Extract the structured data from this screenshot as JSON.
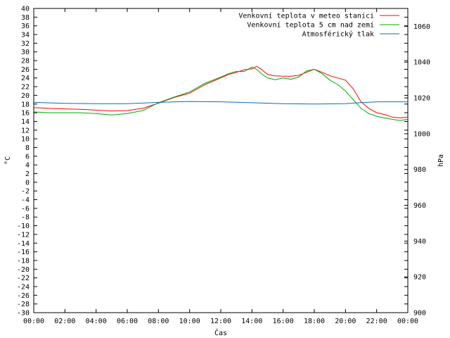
{
  "chart_data": {
    "type": "line",
    "xlabel": "Čas",
    "ylabel_left": "°C",
    "ylabel_right": "hPa",
    "y_left_range": [
      -30,
      40
    ],
    "y_left_ticks": [
      "40",
      "38",
      "36",
      "34",
      "32",
      "30",
      "28",
      "26",
      "24",
      "22",
      "20",
      "18",
      "16",
      "14",
      "12",
      "10",
      "8",
      "6",
      "4",
      "2",
      "0",
      "-2",
      "-4",
      "-6",
      "-8",
      "-10",
      "-12",
      "-14",
      "-16",
      "-18",
      "-20",
      "-22",
      "-24",
      "-26",
      "-28",
      "-30"
    ],
    "y_right_range": [
      900,
      1070
    ],
    "y_right_ticks": [
      "1060",
      "1040",
      "1020",
      "1000",
      "980",
      "960",
      "940",
      "920",
      "900"
    ],
    "x_range_hours": [
      0,
      24
    ],
    "x_ticks": [
      "00:00",
      "02:00",
      "04:00",
      "06:00",
      "08:00",
      "10:00",
      "12:00",
      "14:00",
      "16:00",
      "18:00",
      "20:00",
      "22:00",
      "00:00"
    ],
    "grid": false,
    "legend_position": "top-right",
    "series": [
      {
        "name": "Venkovní teplota v meteo stanici",
        "axis": "left",
        "color": "#ff0000",
        "points": [
          [
            0,
            17.2
          ],
          [
            1,
            17.0
          ],
          [
            2,
            16.9
          ],
          [
            3,
            16.8
          ],
          [
            4,
            16.6
          ],
          [
            5,
            16.4
          ],
          [
            6,
            16.5
          ],
          [
            7,
            17.0
          ],
          [
            8,
            18.2
          ],
          [
            9,
            19.5
          ],
          [
            10,
            20.5
          ],
          [
            11,
            22.5
          ],
          [
            12,
            24.0
          ],
          [
            12.5,
            24.8
          ],
          [
            13,
            25.3
          ],
          [
            13.5,
            25.9
          ],
          [
            14,
            26.1
          ],
          [
            14.3,
            26.7
          ],
          [
            14.6,
            26.0
          ],
          [
            15,
            24.8
          ],
          [
            15.5,
            24.5
          ],
          [
            16,
            24.4
          ],
          [
            16.5,
            24.4
          ],
          [
            17,
            24.6
          ],
          [
            17.5,
            25.3
          ],
          [
            18,
            26.0
          ],
          [
            18.5,
            25.3
          ],
          [
            19,
            24.5
          ],
          [
            19.5,
            24.0
          ],
          [
            20,
            23.5
          ],
          [
            20.5,
            21.5
          ],
          [
            21,
            18.5
          ],
          [
            21.5,
            17.0
          ],
          [
            22,
            16.0
          ],
          [
            22.5,
            15.6
          ],
          [
            23,
            15.0
          ],
          [
            23.5,
            14.8
          ],
          [
            24,
            15.0
          ]
        ]
      },
      {
        "name": "Venkovní teplota 5 cm nad zemí",
        "axis": "left",
        "color": "#00aa00",
        "points": [
          [
            0,
            16.2
          ],
          [
            1,
            16.0
          ],
          [
            2,
            16.0
          ],
          [
            3,
            16.0
          ],
          [
            4,
            15.8
          ],
          [
            5,
            15.5
          ],
          [
            6,
            15.8
          ],
          [
            7,
            16.5
          ],
          [
            8,
            18.3
          ],
          [
            9,
            19.6
          ],
          [
            10,
            20.8
          ],
          [
            11,
            22.8
          ],
          [
            12,
            24.2
          ],
          [
            12.5,
            25.0
          ],
          [
            13,
            25.5
          ],
          [
            13.5,
            25.5
          ],
          [
            14,
            26.5
          ],
          [
            14.3,
            26.0
          ],
          [
            14.6,
            25.0
          ],
          [
            15,
            24.0
          ],
          [
            15.5,
            23.6
          ],
          [
            16,
            24.0
          ],
          [
            16.5,
            23.7
          ],
          [
            17,
            24.2
          ],
          [
            17.5,
            25.6
          ],
          [
            18,
            26.0
          ],
          [
            18.5,
            25.0
          ],
          [
            19,
            23.5
          ],
          [
            19.5,
            22.5
          ],
          [
            20,
            21.0
          ],
          [
            20.5,
            19.0
          ],
          [
            21,
            17.0
          ],
          [
            21.5,
            15.8
          ],
          [
            22,
            15.2
          ],
          [
            22.5,
            14.8
          ],
          [
            23,
            14.5
          ],
          [
            23.5,
            14.2
          ],
          [
            24,
            14.5
          ]
        ]
      },
      {
        "name": "Atmosférický tlak",
        "axis": "right",
        "color": "#0070c0",
        "points": [
          [
            0,
            1017.5
          ],
          [
            2,
            1017.0
          ],
          [
            4,
            1016.8
          ],
          [
            6,
            1016.8
          ],
          [
            8,
            1017.5
          ],
          [
            10,
            1018.0
          ],
          [
            12,
            1017.8
          ],
          [
            14,
            1017.3
          ],
          [
            16,
            1016.8
          ],
          [
            18,
            1016.6
          ],
          [
            20,
            1016.8
          ],
          [
            21,
            1017.4
          ],
          [
            22,
            1017.8
          ],
          [
            24,
            1017.8
          ]
        ]
      }
    ]
  }
}
